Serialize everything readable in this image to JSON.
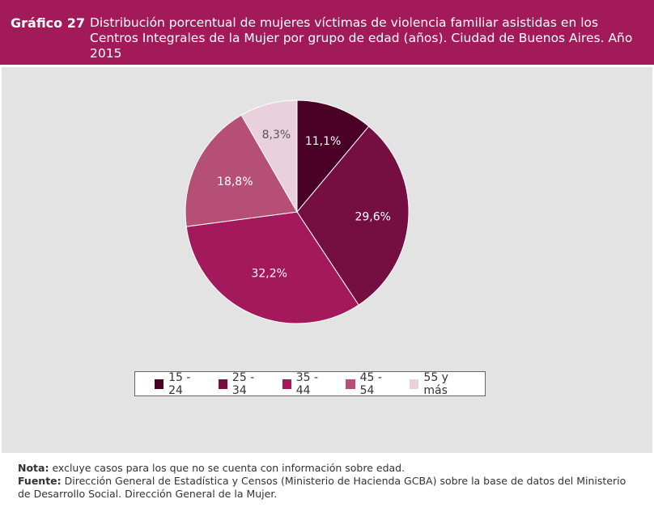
{
  "header": {
    "number": "Gráfico 27",
    "title": "Distribución porcentual de mujeres víctimas de violencia familiar asistidas en los Centros Integrales de la Mujer por grupo de edad (años). Ciudad de Buenos Aires. Año 2015"
  },
  "chart_data": {
    "type": "pie",
    "title": "Distribución porcentual de mujeres víctimas de violencia familiar asistidas en los Centros Integrales de la Mujer por grupo de edad (años). Ciudad de Buenos Aires. Año 2015",
    "categories": [
      "15 - 24",
      "25 - 34",
      "35 - 44",
      "45 - 54",
      "55 y más"
    ],
    "values": [
      11.1,
      29.6,
      32.2,
      18.8,
      8.3
    ],
    "labels": [
      "11,1%",
      "29,6%",
      "32,2%",
      "18,8%",
      "8,3%"
    ],
    "colors": [
      "#4a0024",
      "#750f42",
      "#a3195b",
      "#b54f75",
      "#ead0da"
    ],
    "label_colors": [
      "#ffffff",
      "#ffffff",
      "#ffffff",
      "#ffffff",
      "#555555"
    ],
    "legend_position": "bottom"
  },
  "notes": {
    "nota_label": "Nota:",
    "nota_text": " excluye casos para los que no se cuenta con información sobre edad.",
    "fuente_label": "Fuente:",
    "fuente_text": " Dirección General de Estadística y Censos (Ministerio de Hacienda GCBA) sobre la base de datos del Ministerio de Desarrollo Social. Dirección General de la Mujer."
  }
}
